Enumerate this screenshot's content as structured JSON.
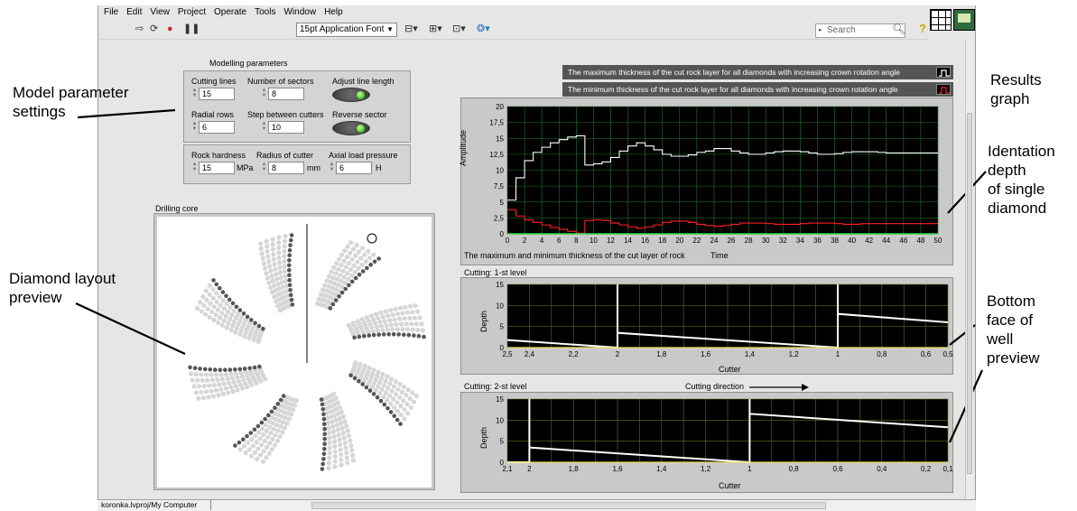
{
  "menu": [
    "File",
    "Edit",
    "View",
    "Project",
    "Operate",
    "Tools",
    "Window",
    "Help"
  ],
  "toolbar": {
    "font_select": "15pt Application Font",
    "search_placeholder": "Search",
    "icons": [
      "run-arrow-icon",
      "run-continuously-icon",
      "abort-icon",
      "pause-icon",
      "align-icon",
      "distribute-icon",
      "resize-icon",
      "reorder-icon",
      "help-icon"
    ]
  },
  "modelling": {
    "title": "Modelling parameters",
    "cutting_lines": {
      "label": "Cutting lines",
      "value": "15"
    },
    "number_of_sectors": {
      "label": "Number of sectors",
      "value": "8"
    },
    "adjust_line_length": {
      "label": "Adjust line length",
      "state": true
    },
    "radial_rows": {
      "label": "Radial rows",
      "value": "6"
    },
    "step_between_cutters": {
      "label": "Step between cutters",
      "value": "10"
    },
    "reverse_sector": {
      "label": "Reverse sector",
      "state": true
    },
    "rock_hardness": {
      "label": "Rock hardness",
      "value": "15",
      "unit": "MPa"
    },
    "radius_of_cutter": {
      "label": "Radius of cutter",
      "value": "8",
      "unit": "mm"
    },
    "axial_load_pressure": {
      "label": "Axial load pressure",
      "value": "6",
      "unit": "H"
    }
  },
  "drilling_core": {
    "title": "Drilling core"
  },
  "results": {
    "legend_max": "The maximum thickness of the cut rock layer for all diamonds with increasing crown rotation angle",
    "legend_min": "The minimum thickness of the cut rock layer for all diamonds with increasing crown rotation angle",
    "caption": "The maximum and minimum thickness of the cut layer of rock",
    "xlabel": "Time",
    "ylabel": "Amplitude",
    "yticks": [
      "20",
      "17,5",
      "15",
      "12,5",
      "10",
      "7,5",
      "5",
      "2,5",
      "0"
    ],
    "xticks": [
      "0",
      "2",
      "4",
      "6",
      "8",
      "10",
      "12",
      "14",
      "16",
      "18",
      "20",
      "22",
      "24",
      "26",
      "28",
      "30",
      "32",
      "34",
      "36",
      "38",
      "40",
      "42",
      "44",
      "46",
      "48",
      "50"
    ]
  },
  "cutting1": {
    "title": "Cutting: 1-st level",
    "xlabel": "Cutter",
    "ylabel": "Depth",
    "yticks": [
      "15",
      "10",
      "5",
      "0"
    ],
    "xticks": [
      "2,5",
      "2,4",
      "2,2",
      "2",
      "1,8",
      "1,6",
      "1,4",
      "1,2",
      "1",
      "0,8",
      "0,6",
      "0,5"
    ]
  },
  "cutting2": {
    "title": "Cutting: 2-st level",
    "direction_label": "Cutting direction",
    "xlabel": "Cutter",
    "ylabel": "Depth",
    "yticks": [
      "15",
      "10",
      "5",
      "0"
    ],
    "xticks": [
      "2,1",
      "2",
      "1,8",
      "1,6",
      "1,4",
      "1,2",
      "1",
      "0,8",
      "0,6",
      "0,4",
      "0,2",
      "0,1"
    ]
  },
  "annotations": {
    "model_params": [
      "Model parameter",
      "settings"
    ],
    "diamond_layout": [
      "Diamond layout",
      "preview"
    ],
    "results_graph": [
      "Results",
      "graph"
    ],
    "identation": [
      "Identation",
      "depth",
      "of single",
      "diamond"
    ],
    "bottom_face": [
      "Bottom",
      "face of",
      "well",
      "preview"
    ]
  },
  "status": {
    "path": "koronka.lvproj/My Computer"
  },
  "chart_data": [
    {
      "type": "line",
      "title": "The maximum and minimum thickness of the cut layer of rock",
      "xlabel": "Time",
      "ylabel": "Amplitude",
      "xlim": [
        0,
        50
      ],
      "ylim": [
        0,
        20
      ],
      "x": [
        0,
        1,
        2,
        3,
        4,
        5,
        6,
        7,
        8,
        9,
        10,
        11,
        12,
        13,
        14,
        15,
        16,
        17,
        18,
        19,
        20,
        21,
        22,
        23,
        24,
        25,
        26,
        27,
        28,
        29,
        30,
        31,
        32,
        33,
        34,
        35,
        36,
        37,
        38,
        39,
        40,
        41,
        42,
        43,
        44,
        45,
        46,
        47,
        48,
        49,
        50
      ],
      "series": [
        {
          "name": "The maximum thickness of the cut rock layer for all diamonds with increasing crown rotation angle",
          "color": "#ffffff",
          "values": [
            5.3,
            8.8,
            11.5,
            12.8,
            13.6,
            14.3,
            14.8,
            15.2,
            15.4,
            10.8,
            11.0,
            11.3,
            12.0,
            13.0,
            13.8,
            14.3,
            13.8,
            13.2,
            12.5,
            12.2,
            12.2,
            12.4,
            12.8,
            13.0,
            13.4,
            13.4,
            13.0,
            12.7,
            12.5,
            12.5,
            12.7,
            12.9,
            13.0,
            13.0,
            12.9,
            12.7,
            12.5,
            12.5,
            12.6,
            12.8,
            12.9,
            12.9,
            12.9,
            12.8,
            12.7,
            12.7,
            12.7,
            12.7,
            12.7,
            12.7,
            12.7
          ]
        },
        {
          "name": "The minimum thickness of the cut rock layer for all diamonds with increasing crown rotation angle",
          "color": "#ff2020",
          "values": [
            3.8,
            2.8,
            2.2,
            1.8,
            1.4,
            1.0,
            0.7,
            0.4,
            0.1,
            2.1,
            2.2,
            2.1,
            1.7,
            1.4,
            1.1,
            0.9,
            1.1,
            1.4,
            1.8,
            2.0,
            2.0,
            1.8,
            1.5,
            1.3,
            1.2,
            1.3,
            1.5,
            1.7,
            1.7,
            1.7,
            1.6,
            1.5,
            1.5,
            1.5,
            1.6,
            1.7,
            1.7,
            1.7,
            1.6,
            1.5,
            1.5,
            1.6,
            1.6,
            1.6,
            1.6,
            1.6,
            1.6,
            1.6,
            1.6,
            1.6,
            1.6
          ]
        }
      ],
      "grid": true
    },
    {
      "type": "line",
      "title": "Cutting: 1-st level",
      "xlabel": "Cutter",
      "ylabel": "Depth",
      "xlim": [
        2.5,
        0.5
      ],
      "ylim": [
        0,
        15
      ],
      "series": [
        {
          "color": "#ffffff",
          "points": [
            [
              2.5,
              1.8
            ],
            [
              2.0,
              0.0
            ],
            [
              2.0,
              15.0
            ],
            [
              2.0,
              3.5
            ],
            [
              1.0,
              0.0
            ],
            [
              1.0,
              15.0
            ],
            [
              1.0,
              8.0
            ],
            [
              0.5,
              6.0
            ]
          ]
        }
      ],
      "grid": true
    },
    {
      "type": "line",
      "title": "Cutting: 2-st level",
      "xlabel": "Cutter",
      "ylabel": "Depth",
      "xlim": [
        2.1,
        0.1
      ],
      "ylim": [
        0,
        15
      ],
      "series": [
        {
          "color": "#ffffff",
          "points": [
            [
              2.1,
              0.0
            ],
            [
              2.0,
              0.0
            ],
            [
              2.0,
              15.0
            ],
            [
              2.0,
              3.5
            ],
            [
              1.0,
              0.0
            ],
            [
              1.0,
              15.0
            ],
            [
              1.0,
              11.5
            ],
            [
              0.1,
              8.3
            ]
          ]
        }
      ],
      "grid": true
    }
  ]
}
